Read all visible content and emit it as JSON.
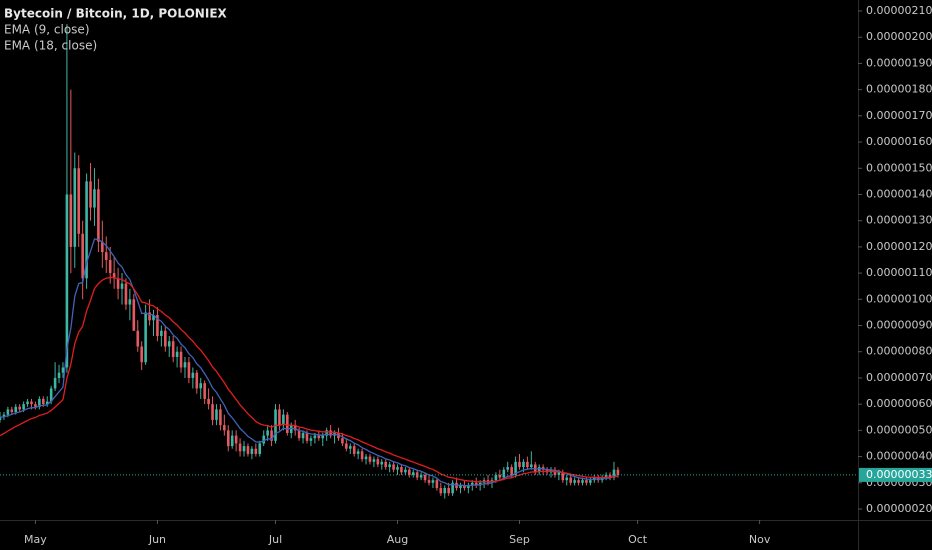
{
  "chart_data": {
    "type": "candlestick",
    "title": "Bytecoin / Bitcoin, 1D, POLONIEX",
    "x": [
      0,
      1,
      2,
      3,
      4,
      5,
      6,
      7,
      8,
      9,
      10,
      11,
      12,
      13,
      14,
      15,
      16,
      17,
      18,
      19,
      20,
      21,
      22,
      23,
      24,
      25,
      26,
      27,
      28,
      29,
      30,
      31,
      32,
      33,
      34,
      35,
      36,
      37,
      38,
      39,
      40,
      41,
      42,
      43,
      44,
      45,
      46,
      47,
      48,
      49,
      50,
      51,
      52,
      53,
      54,
      55,
      56,
      57,
      58,
      59,
      60,
      61,
      62,
      63,
      64,
      65,
      66,
      67,
      68,
      69,
      70,
      71,
      72,
      73,
      74,
      75,
      76,
      77,
      78,
      79,
      80,
      81,
      82,
      83,
      84,
      85,
      86,
      87,
      88,
      89,
      90,
      91,
      92,
      93,
      94,
      95,
      96,
      97,
      98,
      99,
      100,
      101,
      102,
      103,
      104,
      105,
      106,
      107,
      108,
      109,
      110,
      111,
      112,
      113,
      114,
      115,
      116,
      117,
      118,
      119,
      120,
      121,
      122,
      123,
      124,
      125,
      126,
      127,
      128,
      129,
      130,
      131,
      132,
      133,
      134,
      135,
      136,
      137,
      138,
      139,
      140,
      141,
      142,
      143,
      144,
      145,
      146,
      147,
      148,
      149,
      150,
      151,
      152,
      153,
      154,
      155,
      156,
      157
    ],
    "open": [
      5.4e-07,
      5.5e-07,
      5.6e-07,
      5.8e-07,
      5.7e-07,
      5.9e-07,
      5.8e-07,
      6e-07,
      6.1e-07,
      6e-07,
      5.9e-07,
      6.2e-07,
      6e-07,
      6.1e-07,
      6.6e-07,
      7e-07,
      7.2e-07,
      7.4e-07,
      1.4e-06,
      1.2e-06,
      1.5e-06,
      1.25e-06,
      1.08e-06,
      1.45e-06,
      1.35e-06,
      1.42e-06,
      1.22e-06,
      1.18e-06,
      1.15e-06,
      1.1e-06,
      1.08e-06,
      1.04e-06,
      1.06e-06,
      9.8e-07,
      1e-06,
      8.8e-07,
      8.2e-07,
      7.6e-07,
      9.5e-07,
      9.2e-07,
      9.4e-07,
      8.6e-07,
      8.8e-07,
      8.2e-07,
      8.4e-07,
      7.8e-07,
      8e-07,
      7.4e-07,
      7.6e-07,
      7e-07,
      7.2e-07,
      6.6e-07,
      6.8e-07,
      6.2e-07,
      6e-07,
      5.4e-07,
      5.8e-07,
      5.2e-07,
      5e-07,
      4.4e-07,
      4.8e-07,
      4.5e-07,
      4.2e-07,
      4.4e-07,
      4.1e-07,
      4.3e-07,
      4.1e-07,
      4.5e-07,
      4.8e-07,
      5e-07,
      4.6e-07,
      5.8e-07,
      5.2e-07,
      5.6e-07,
      4.9e-07,
      5.2e-07,
      5e-07,
      4.7e-07,
      4.9e-07,
      4.6e-07,
      4.7e-07,
      4.8e-07,
      4.7e-07,
      4.8e-07,
      5e-07,
      4.8e-07,
      4.9e-07,
      4.7e-07,
      4.5e-07,
      4.3e-07,
      4.4e-07,
      4.1e-07,
      4.2e-07,
      3.9e-07,
      4e-07,
      3.8e-07,
      3.9e-07,
      3.7e-07,
      3.8e-07,
      3.6e-07,
      3.7e-07,
      3.5e-07,
      3.6e-07,
      3.4e-07,
      3.5e-07,
      3.3e-07,
      3.4e-07,
      3.2e-07,
      3.3e-07,
      3.1e-07,
      3e-07,
      3.1e-07,
      2.8e-07,
      2.6e-07,
      2.8e-07,
      2.6e-07,
      3e-07,
      2.8e-07,
      2.9e-07,
      2.8e-07,
      2.9e-07,
      3e-07,
      2.9e-07,
      3e-07,
      3.1e-07,
      3e-07,
      3.1e-07,
      3.3e-07,
      3.2e-07,
      3.5e-07,
      3.6e-07,
      3.3e-07,
      3.8e-07,
      3.6e-07,
      3.8e-07,
      3.6e-07,
      3.7e-07,
      3.4e-07,
      3.6e-07,
      3.5e-07,
      3.4e-07,
      3.5e-07,
      3.3e-07,
      3.4e-07,
      3.1e-07,
      3.2e-07,
      3e-07,
      3.1e-07,
      3e-07,
      3.1e-07,
      3e-07,
      3.1e-07,
      3.2e-07,
      3.1e-07,
      3.2e-07,
      3.3e-07,
      3.2e-07,
      3.5e-07
    ],
    "high": [
      5.7e-07,
      5.7e-07,
      5.9e-07,
      5.9e-07,
      6e-07,
      6e-07,
      6.1e-07,
      6.2e-07,
      6.2e-07,
      6.1e-07,
      6.3e-07,
      6.3e-07,
      6.3e-07,
      6.7e-07,
      7.6e-07,
      7.5e-07,
      7.6e-07,
      2.05e-06,
      1.8e-06,
      1.56e-06,
      1.55e-06,
      1.3e-06,
      1.48e-06,
      1.52e-06,
      1.5e-06,
      1.46e-06,
      1.3e-06,
      1.24e-06,
      1.2e-06,
      1.16e-06,
      1.12e-06,
      1.1e-06,
      1.08e-06,
      1.04e-06,
      1.02e-06,
      9.2e-07,
      8.4e-07,
      9.8e-07,
      1e-06,
      9.6e-07,
      9.7e-07,
      9e-07,
      9e-07,
      8.6e-07,
      8.6e-07,
      8.2e-07,
      8.2e-07,
      7.8e-07,
      7.8e-07,
      7.4e-07,
      7.3e-07,
      7e-07,
      6.9e-07,
      6.6e-07,
      6.3e-07,
      6e-07,
      6e-07,
      5.6e-07,
      5.2e-07,
      5e-07,
      5e-07,
      4.7e-07,
      4.6e-07,
      4.5e-07,
      4.4e-07,
      4.5e-07,
      4.6e-07,
      5e-07,
      5.2e-07,
      5.2e-07,
      6e-07,
      6e-07,
      5.8e-07,
      5.7e-07,
      5.3e-07,
      5.4e-07,
      5.1e-07,
      5e-07,
      5e-07,
      4.8e-07,
      4.9e-07,
      5e-07,
      4.9e-07,
      5.1e-07,
      5.2e-07,
      5e-07,
      5.1e-07,
      4.9e-07,
      4.7e-07,
      4.5e-07,
      4.5e-07,
      4.3e-07,
      4.3e-07,
      4.1e-07,
      4.1e-07,
      4e-07,
      4e-07,
      3.9e-07,
      3.9e-07,
      3.8e-07,
      3.8e-07,
      3.7e-07,
      3.7e-07,
      3.6e-07,
      3.6e-07,
      3.5e-07,
      3.5e-07,
      3.4e-07,
      3.4e-07,
      3.3e-07,
      3.2e-07,
      3.2e-07,
      3e-07,
      2.9e-07,
      3e-07,
      3.1e-07,
      3.2e-07,
      3e-07,
      3.1e-07,
      3e-07,
      3.1e-07,
      3.2e-07,
      3.1e-07,
      3.2e-07,
      3.3e-07,
      3.2e-07,
      3.4e-07,
      3.5e-07,
      3.6e-07,
      3.8e-07,
      3.7e-07,
      4e-07,
      4.1e-07,
      3.9e-07,
      4e-07,
      4.2e-07,
      3.8e-07,
      3.7e-07,
      3.7e-07,
      3.6e-07,
      3.6e-07,
      3.6e-07,
      3.5e-07,
      3.5e-07,
      3.3e-07,
      3.3e-07,
      3.2e-07,
      3.2e-07,
      3.2e-07,
      3.2e-07,
      3.2e-07,
      3.3e-07,
      3.3e-07,
      3.3e-07,
      3.4e-07,
      3.4e-07,
      3.8e-07,
      3.6e-07
    ],
    "low": [
      5.3e-07,
      5.4e-07,
      5.5e-07,
      5.6e-07,
      5.6e-07,
      5.7e-07,
      5.7e-07,
      5.9e-07,
      5.8e-07,
      5.8e-07,
      5.8e-07,
      5.9e-07,
      5.9e-07,
      6e-07,
      6.5e-07,
      6.8e-07,
      7e-07,
      7.2e-07,
      1.1e-06,
      1.12e-06,
      1.2e-06,
      1e-06,
      1.04e-06,
      1.3e-06,
      1.28e-06,
      1.18e-06,
      1.12e-06,
      1.1e-06,
      1.06e-06,
      1.04e-06,
      1e-06,
      9.8e-07,
      9.6e-07,
      9.2e-07,
      8.8e-07,
      8e-07,
      7.3e-07,
      7.5e-07,
      9e-07,
      8.6e-07,
      8.4e-07,
      8.2e-07,
      8e-07,
      7.8e-07,
      7.6e-07,
      7.4e-07,
      7.2e-07,
      7e-07,
      6.8e-07,
      6.6e-07,
      6.4e-07,
      6.2e-07,
      6e-07,
      5.8e-07,
      5.2e-07,
      5.2e-07,
      5e-07,
      4.8e-07,
      4.2e-07,
      4.3e-07,
      4.2e-07,
      4e-07,
      4e-07,
      4e-07,
      3.9e-07,
      4e-07,
      4e-07,
      4.4e-07,
      4.6e-07,
      4.4e-07,
      4.5e-07,
      5e-07,
      5e-07,
      4.8e-07,
      4.7e-07,
      4.8e-07,
      4.6e-07,
      4.5e-07,
      4.5e-07,
      4.4e-07,
      4.5e-07,
      4.6e-07,
      4.4e-07,
      4.6e-07,
      4.7e-07,
      4.5e-07,
      4.6e-07,
      4.4e-07,
      4.2e-07,
      4.1e-07,
      4e-07,
      3.9e-07,
      3.8e-07,
      3.7e-07,
      3.7e-07,
      3.6e-07,
      3.6e-07,
      3.5e-07,
      3.5e-07,
      3.4e-07,
      3.4e-07,
      3.3e-07,
      3.3e-07,
      3.3e-07,
      3.2e-07,
      3.2e-07,
      3.1e-07,
      3.1e-07,
      3e-07,
      2.9e-07,
      2.8e-07,
      2.7e-07,
      2.5e-07,
      2.4e-07,
      2.5e-07,
      2.5e-07,
      2.7e-07,
      2.6e-07,
      2.7e-07,
      2.6e-07,
      2.7e-07,
      2.8e-07,
      2.7e-07,
      2.8e-07,
      2.9e-07,
      2.8e-07,
      3e-07,
      3.1e-07,
      3.1e-07,
      3.4e-07,
      3.2e-07,
      3.2e-07,
      3.5e-07,
      3.4e-07,
      3.5e-07,
      3.5e-07,
      3.3e-07,
      3.3e-07,
      3.3e-07,
      3.3e-07,
      3.2e-07,
      3.2e-07,
      3.1e-07,
      3e-07,
      2.9e-07,
      2.9e-07,
      2.9e-07,
      2.9e-07,
      2.9e-07,
      2.9e-07,
      2.9e-07,
      3e-07,
      3e-07,
      3e-07,
      3.1e-07,
      3.1e-07,
      3.1e-07,
      3.2e-07
    ],
    "close": [
      5.5e-07,
      5.6e-07,
      5.8e-07,
      5.7e-07,
      5.9e-07,
      5.8e-07,
      6e-07,
      6.1e-07,
      6e-07,
      5.9e-07,
      6.2e-07,
      6e-07,
      6.1e-07,
      6.6e-07,
      7e-07,
      7.2e-07,
      7.4e-07,
      1.4e-06,
      1.2e-06,
      1.5e-06,
      1.25e-06,
      1.08e-06,
      1.45e-06,
      1.35e-06,
      1.42e-06,
      1.22e-06,
      1.18e-06,
      1.15e-06,
      1.1e-06,
      1.08e-06,
      1.04e-06,
      1.06e-06,
      9.8e-07,
      1e-06,
      8.8e-07,
      8.2e-07,
      7.6e-07,
      9.5e-07,
      9.2e-07,
      9.4e-07,
      8.6e-07,
      8.8e-07,
      8.2e-07,
      8.4e-07,
      7.8e-07,
      8e-07,
      7.4e-07,
      7.6e-07,
      7e-07,
      7.2e-07,
      6.6e-07,
      6.8e-07,
      6.2e-07,
      6e-07,
      5.4e-07,
      5.8e-07,
      5.2e-07,
      5e-07,
      4.4e-07,
      4.8e-07,
      4.5e-07,
      4.2e-07,
      4.4e-07,
      4.1e-07,
      4.3e-07,
      4.1e-07,
      4.5e-07,
      4.8e-07,
      5e-07,
      4.6e-07,
      5.8e-07,
      5.2e-07,
      5.6e-07,
      4.9e-07,
      5.2e-07,
      5e-07,
      4.7e-07,
      4.9e-07,
      4.6e-07,
      4.7e-07,
      4.8e-07,
      4.7e-07,
      4.8e-07,
      5e-07,
      4.8e-07,
      4.9e-07,
      4.7e-07,
      4.5e-07,
      4.3e-07,
      4.4e-07,
      4.1e-07,
      4.2e-07,
      3.9e-07,
      4e-07,
      3.8e-07,
      3.9e-07,
      3.7e-07,
      3.8e-07,
      3.6e-07,
      3.7e-07,
      3.5e-07,
      3.6e-07,
      3.4e-07,
      3.5e-07,
      3.3e-07,
      3.4e-07,
      3.2e-07,
      3.3e-07,
      3.1e-07,
      3e-07,
      3.1e-07,
      2.8e-07,
      2.6e-07,
      2.8e-07,
      2.6e-07,
      3e-07,
      2.8e-07,
      2.9e-07,
      2.8e-07,
      2.9e-07,
      3e-07,
      2.9e-07,
      3e-07,
      3.1e-07,
      3e-07,
      3.1e-07,
      3.3e-07,
      3.2e-07,
      3.5e-07,
      3.6e-07,
      3.3e-07,
      3.8e-07,
      3.6e-07,
      3.8e-07,
      3.6e-07,
      3.7e-07,
      3.4e-07,
      3.6e-07,
      3.5e-07,
      3.4e-07,
      3.5e-07,
      3.3e-07,
      3.4e-07,
      3.1e-07,
      3.2e-07,
      3e-07,
      3.1e-07,
      3e-07,
      3.1e-07,
      3e-07,
      3.1e-07,
      3.2e-07,
      3.1e-07,
      3.2e-07,
      3.3e-07,
      3.2e-07,
      3.5e-07,
      3.3e-07
    ],
    "up_color": "#3fb5a3",
    "down_color": "#e35a61",
    "series": [
      {
        "name": "EMA (9, close)",
        "color": "#3f63b8",
        "values": [
          5.5e-07,
          5.52e-07,
          5.56e-07,
          5.61e-07,
          5.67e-07,
          5.7e-07,
          5.76e-07,
          5.83e-07,
          5.86e-07,
          5.87e-07,
          5.94e-07,
          5.95e-07,
          5.98e-07,
          6.11e-07,
          6.29e-07,
          6.47e-07,
          6.65e-07,
          8.12e-07,
          8.9e-07,
          1.012e-06,
          1.06e-06,
          1.064e-06,
          1.141e-06,
          1.183e-06,
          1.23e-06,
          1.228e-06,
          1.218e-06,
          1.205e-06,
          1.184e-06,
          1.163e-06,
          1.138e-06,
          1.123e-06,
          1.094e-06,
          1.075e-06,
          1.036e-06,
          9.93e-07,
          9.46e-07,
          9.47e-07,
          9.42e-07,
          9.41e-07,
          9.25e-07,
          9.16e-07,
          8.97e-07,
          8.85e-07,
          8.64e-07,
          8.51e-07,
          8.29e-07,
          8.15e-07,
          7.92e-07,
          7.78e-07,
          7.54e-07,
          7.39e-07,
          7.16e-07,
          6.92e-07,
          6.62e-07,
          6.45e-07,
          6.2e-07,
          5.96e-07,
          5.65e-07,
          5.48e-07,
          5.28e-07,
          5.07e-07,
          4.93e-07,
          4.77e-07,
          4.67e-07,
          4.56e-07,
          4.55e-07,
          4.6e-07,
          4.68e-07,
          4.66e-07,
          4.89e-07,
          4.95e-07,
          5.08e-07,
          5.05e-07,
          5.08e-07,
          5.06e-07,
          4.99e-07,
          4.97e-07,
          4.9e-07,
          4.86e-07,
          4.85e-07,
          4.82e-07,
          4.82e-07,
          4.85e-07,
          4.84e-07,
          4.85e-07,
          4.82e-07,
          4.76e-07,
          4.67e-07,
          4.61e-07,
          4.51e-07,
          4.45e-07,
          4.34e-07,
          4.27e-07,
          4.18e-07,
          4.12e-07,
          4.04e-07,
          3.99e-07,
          3.91e-07,
          3.87e-07,
          3.8e-07,
          3.76e-07,
          3.69e-07,
          3.65e-07,
          3.58e-07,
          3.54e-07,
          3.48e-07,
          3.44e-07,
          3.37e-07,
          3.3e-07,
          3.26e-07,
          3.17e-07,
          3.05e-07,
          3e-07,
          2.92e-07,
          2.94e-07,
          2.91e-07,
          2.91e-07,
          2.89e-07,
          2.89e-07,
          2.91e-07,
          2.91e-07,
          2.93e-07,
          2.96e-07,
          2.97e-07,
          3e-07,
          3.06e-07,
          3.09e-07,
          3.17e-07,
          3.25e-07,
          3.26e-07,
          3.37e-07,
          3.42e-07,
          3.49e-07,
          3.51e-07,
          3.55e-07,
          3.52e-07,
          3.54e-07,
          3.53e-07,
          3.5e-07,
          3.5e-07,
          3.46e-07,
          3.45e-07,
          3.38e-07,
          3.34e-07,
          3.28e-07,
          3.24e-07,
          3.19e-07,
          3.17e-07,
          3.14e-07,
          3.13e-07,
          3.14e-07,
          3.14e-07,
          3.15e-07,
          3.18e-07,
          3.18e-07,
          3.25e-07,
          3.26e-07
        ]
      },
      {
        "name": "EMA (18, close)",
        "color": "#e01e1e",
        "values": [
          4.8e-07,
          4.88e-07,
          4.98e-07,
          5.06e-07,
          5.15e-07,
          5.22e-07,
          5.3e-07,
          5.38e-07,
          5.45e-07,
          5.49e-07,
          5.57e-07,
          5.61e-07,
          5.66e-07,
          5.76e-07,
          5.89e-07,
          6.03e-07,
          6.17e-07,
          6.99e-07,
          7.52e-07,
          8.31e-07,
          8.75e-07,
          8.97e-07,
          9.55e-07,
          9.96e-07,
          1.041e-06,
          1.06e-06,
          1.073e-06,
          1.081e-06,
          1.083e-06,
          1.083e-06,
          1.078e-06,
          1.076e-06,
          1.066e-06,
          1.059e-06,
          1.04e-06,
          1.017e-06,
          9.9e-07,
          9.86e-07,
          9.79e-07,
          9.75e-07,
          9.63e-07,
          9.54e-07,
          9.4e-07,
          9.3e-07,
          9.14e-07,
          9.02e-07,
          8.85e-07,
          8.72e-07,
          8.54e-07,
          8.4e-07,
          8.21e-07,
          8.06e-07,
          7.86e-07,
          7.66e-07,
          7.42e-07,
          7.25e-07,
          7.03e-07,
          6.82e-07,
          6.57e-07,
          6.38e-07,
          6.18e-07,
          5.97e-07,
          5.81e-07,
          5.63e-07,
          5.49e-07,
          5.34e-07,
          5.25e-07,
          5.2e-07,
          5.18e-07,
          5.12e-07,
          5.19e-07,
          5.19e-07,
          5.23e-07,
          5.2e-07,
          5.2e-07,
          5.18e-07,
          5.13e-07,
          5.1e-07,
          5.05e-07,
          5.01e-07,
          4.99e-07,
          4.96e-07,
          4.94e-07,
          4.95e-07,
          4.93e-07,
          4.93e-07,
          4.9e-07,
          4.86e-07,
          4.8e-07,
          4.76e-07,
          4.69e-07,
          4.64e-07,
          4.56e-07,
          4.5e-07,
          4.43e-07,
          4.37e-07,
          4.3e-07,
          4.25e-07,
          4.18e-07,
          4.13e-07,
          4.06e-07,
          4.01e-07,
          3.95e-07,
          3.9e-07,
          3.84e-07,
          3.79e-07,
          3.73e-07,
          3.68e-07,
          3.62e-07,
          3.56e-07,
          3.51e-07,
          3.43e-07,
          3.34e-07,
          3.28e-07,
          3.21e-07,
          3.19e-07,
          3.15e-07,
          3.12e-07,
          3.09e-07,
          3.07e-07,
          3.06e-07,
          3.04e-07,
          3.04e-07,
          3.04e-07,
          3.04e-07,
          3.05e-07,
          3.07e-07,
          3.09e-07,
          3.13e-07,
          3.18e-07,
          3.19e-07,
          3.26e-07,
          3.29e-07,
          3.35e-07,
          3.37e-07,
          3.41e-07,
          3.41e-07,
          3.43e-07,
          3.44e-07,
          3.43e-07,
          3.44e-07,
          3.42e-07,
          3.42e-07,
          3.39e-07,
          3.37e-07,
          3.33e-07,
          3.3e-07,
          3.27e-07,
          3.25e-07,
          3.22e-07,
          3.21e-07,
          3.21e-07,
          3.2e-07,
          3.2e-07,
          3.21e-07,
          3.21e-07,
          3.24e-07,
          3.25e-07
        ]
      }
    ],
    "xlim": [
      0,
      218
    ],
    "xticks": [
      {
        "value": 9,
        "label": "May"
      },
      {
        "value": 40,
        "label": "Jun"
      },
      {
        "value": 70,
        "label": "Jul"
      },
      {
        "value": 101,
        "label": "Aug"
      },
      {
        "value": 132,
        "label": "Sep"
      },
      {
        "value": 162,
        "label": "Oct"
      },
      {
        "value": 193,
        "label": "Nov"
      }
    ],
    "ylim": [
      1.58e-07,
      2.142e-06
    ],
    "yticks": [
      {
        "value": 2e-07,
        "label": "0.00000020"
      },
      {
        "value": 3e-07,
        "label": "0.00000030"
      },
      {
        "value": 4e-07,
        "label": "0.00000040"
      },
      {
        "value": 5e-07,
        "label": "0.00000050"
      },
      {
        "value": 6e-07,
        "label": "0.00000060"
      },
      {
        "value": 7e-07,
        "label": "0.00000070"
      },
      {
        "value": 8e-07,
        "label": "0.00000080"
      },
      {
        "value": 9e-07,
        "label": "0.00000090"
      },
      {
        "value": 1e-06,
        "label": "0.00000100"
      },
      {
        "value": 1.1e-06,
        "label": "0.00000110"
      },
      {
        "value": 1.2e-06,
        "label": "0.00000120"
      },
      {
        "value": 1.3e-06,
        "label": "0.00000130"
      },
      {
        "value": 1.4e-06,
        "label": "0.00000140"
      },
      {
        "value": 1.5e-06,
        "label": "0.00000150"
      },
      {
        "value": 1.6e-06,
        "label": "0.00000160"
      },
      {
        "value": 1.7e-06,
        "label": "0.00000170"
      },
      {
        "value": 1.8e-06,
        "label": "0.00000180"
      },
      {
        "value": 1.9e-06,
        "label": "0.00000190"
      },
      {
        "value": 2e-06,
        "label": "0.00000200"
      },
      {
        "value": 2.1e-06,
        "label": "0.00000210"
      }
    ],
    "last_price": {
      "value": 3.3e-07,
      "label": "0.00000033",
      "color": "#26a69a"
    }
  }
}
